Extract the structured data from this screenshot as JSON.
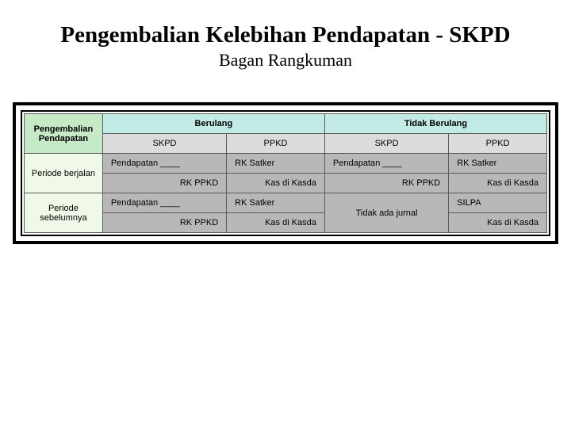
{
  "title": "Pengembalian Kelebihan Pendapatan - SKPD",
  "subtitle": "Bagan Rangkuman",
  "colors": {
    "header_left_bg": "#c5eac5",
    "header_top_bg": "#c2ebe6",
    "cell_bg": "#b8b8b8",
    "row_label_bg": "#f0f9e8",
    "border": "#5a5a5a",
    "outer_border": "#000000",
    "page_bg": "#ffffff",
    "text": "#000000"
  },
  "table": {
    "corner_label": "Pengembalian Pendapatan",
    "group_headers": [
      "Berulang",
      "Tidak Berulang"
    ],
    "sub_headers": [
      "SKPD",
      "PPKD",
      "SKPD",
      "PPKD"
    ],
    "rows": [
      {
        "label": "Periode berjalan",
        "cells": [
          {
            "top": "Pendapatan ____",
            "bottom": "RK PPKD"
          },
          {
            "top": "RK Satker",
            "bottom": "Kas di Kasda"
          },
          {
            "top": "Pendapatan ____",
            "bottom": "RK PPKD"
          },
          {
            "top": "RK Satker",
            "bottom": "Kas di Kasda"
          }
        ]
      },
      {
        "label": "Periode sebelumnya",
        "cells": [
          {
            "top": "Pendapatan ____",
            "bottom": "RK PPKD"
          },
          {
            "top": "RK Satker",
            "bottom": "Kas di Kasda"
          },
          {
            "merged": true,
            "text": "Tidak ada jurnal"
          },
          {
            "top": "SILPA",
            "bottom": "Kas di Kasda"
          }
        ]
      }
    ]
  }
}
